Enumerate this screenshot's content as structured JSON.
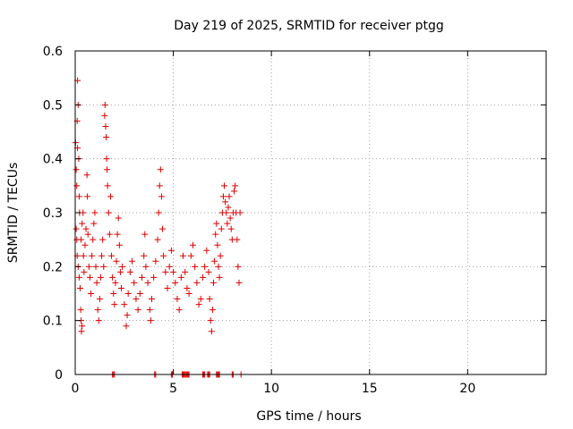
{
  "chart_data": {
    "type": "scatter",
    "title": "Day 219 of 2025, SRMTID for receiver ptgg",
    "xlabel": "GPS time / hours",
    "ylabel": "SRMTID / TECUs",
    "xlim": [
      0,
      24
    ],
    "ylim": [
      0,
      0.6
    ],
    "xticks": [
      0,
      5,
      10,
      15,
      20
    ],
    "yticks": [
      0,
      0.1,
      0.2,
      0.3,
      0.4,
      0.5,
      0.6
    ],
    "xtick_labels": [
      "0",
      "5",
      "10",
      "15",
      "20"
    ],
    "ytick_labels": [
      "0",
      "0.1",
      "0.2",
      "0.3",
      "0.4",
      "0.5",
      "0.6"
    ],
    "grid": true,
    "marker": "+",
    "series": [
      {
        "name": "SRMTID",
        "color": "#dd0000",
        "points": [
          [
            0.02,
            0.43
          ],
          [
            0.05,
            0.38
          ],
          [
            0.08,
            0.35
          ],
          [
            0.1,
            0.47
          ],
          [
            0.12,
            0.545
          ],
          [
            0.15,
            0.5
          ],
          [
            0.12,
            0.42
          ],
          [
            0.18,
            0.4
          ],
          [
            0.2,
            0.33
          ],
          [
            0.22,
            0.3
          ],
          [
            0.05,
            0.27
          ],
          [
            0.08,
            0.25
          ],
          [
            0.1,
            0.22
          ],
          [
            0.15,
            0.2
          ],
          [
            0.2,
            0.18
          ],
          [
            0.25,
            0.16
          ],
          [
            0.28,
            0.12
          ],
          [
            0.3,
            0.1
          ],
          [
            0.32,
            0.08
          ],
          [
            0.35,
            0.09
          ],
          [
            0.3,
            0.25
          ],
          [
            0.35,
            0.28
          ],
          [
            0.4,
            0.3
          ],
          [
            0.42,
            0.22
          ],
          [
            0.45,
            0.19
          ],
          [
            0.5,
            0.24
          ],
          [
            0.55,
            0.27
          ],
          [
            0.6,
            0.37
          ],
          [
            0.62,
            0.33
          ],
          [
            0.65,
            0.26
          ],
          [
            0.7,
            0.2
          ],
          [
            0.75,
            0.18
          ],
          [
            0.8,
            0.15
          ],
          [
            0.85,
            0.22
          ],
          [
            0.9,
            0.25
          ],
          [
            0.95,
            0.28
          ],
          [
            1.0,
            0.3
          ],
          [
            1.05,
            0.2
          ],
          [
            1.1,
            0.17
          ],
          [
            1.15,
            0.12
          ],
          [
            1.2,
            0.1
          ],
          [
            1.25,
            0.14
          ],
          [
            1.3,
            0.18
          ],
          [
            1.35,
            0.22
          ],
          [
            1.4,
            0.25
          ],
          [
            1.45,
            0.2
          ],
          [
            1.5,
            0.48
          ],
          [
            1.52,
            0.5
          ],
          [
            1.55,
            0.46
          ],
          [
            1.58,
            0.44
          ],
          [
            1.6,
            0.4
          ],
          [
            1.62,
            0.38
          ],
          [
            1.65,
            0.35
          ],
          [
            1.7,
            0.3
          ],
          [
            1.75,
            0.26
          ],
          [
            1.8,
            0.33
          ],
          [
            1.85,
            0.22
          ],
          [
            1.9,
            0.18
          ],
          [
            1.95,
            0.15
          ],
          [
            2.0,
            0.13
          ],
          [
            2.05,
            0.17
          ],
          [
            2.1,
            0.21
          ],
          [
            2.15,
            0.26
          ],
          [
            2.2,
            0.29
          ],
          [
            2.25,
            0.24
          ],
          [
            2.3,
            0.19
          ],
          [
            2.35,
            0.16
          ],
          [
            2.4,
            0.2
          ],
          [
            2.5,
            0.13
          ],
          [
            2.6,
            0.09
          ],
          [
            2.65,
            0.11
          ],
          [
            2.7,
            0.15
          ],
          [
            2.8,
            0.19
          ],
          [
            2.9,
            0.21
          ],
          [
            3.0,
            0.17
          ],
          [
            3.1,
            0.14
          ],
          [
            3.2,
            0.12
          ],
          [
            3.3,
            0.15
          ],
          [
            3.4,
            0.18
          ],
          [
            3.5,
            0.22
          ],
          [
            3.55,
            0.26
          ],
          [
            3.6,
            0.2
          ],
          [
            3.7,
            0.17
          ],
          [
            3.8,
            0.12
          ],
          [
            3.85,
            0.1
          ],
          [
            3.9,
            0.14
          ],
          [
            4.0,
            0.18
          ],
          [
            4.1,
            0.21
          ],
          [
            4.2,
            0.25
          ],
          [
            4.25,
            0.3
          ],
          [
            4.3,
            0.35
          ],
          [
            4.35,
            0.38
          ],
          [
            4.4,
            0.33
          ],
          [
            4.45,
            0.27
          ],
          [
            4.5,
            0.22
          ],
          [
            4.6,
            0.19
          ],
          [
            4.7,
            0.16
          ],
          [
            4.8,
            0.2
          ],
          [
            4.9,
            0.23
          ],
          [
            5.0,
            0.19
          ],
          [
            5.1,
            0.17
          ],
          [
            5.2,
            0.14
          ],
          [
            5.3,
            0.12
          ],
          [
            5.4,
            0.18
          ],
          [
            5.5,
            0.22
          ],
          [
            5.6,
            0.19
          ],
          [
            5.7,
            0.16
          ],
          [
            5.8,
            0.15
          ],
          [
            5.9,
            0.22
          ],
          [
            6.0,
            0.24
          ],
          [
            6.1,
            0.2
          ],
          [
            6.2,
            0.17
          ],
          [
            6.3,
            0.13
          ],
          [
            6.4,
            0.14
          ],
          [
            6.5,
            0.18
          ],
          [
            6.6,
            0.2
          ],
          [
            6.7,
            0.23
          ],
          [
            6.8,
            0.19
          ],
          [
            6.85,
            0.14
          ],
          [
            6.9,
            0.1
          ],
          [
            6.95,
            0.08
          ],
          [
            7.0,
            0.12
          ],
          [
            7.05,
            0.17
          ],
          [
            7.1,
            0.21
          ],
          [
            7.15,
            0.26
          ],
          [
            7.2,
            0.28
          ],
          [
            7.25,
            0.24
          ],
          [
            7.3,
            0.2
          ],
          [
            7.35,
            0.18
          ],
          [
            7.4,
            0.22
          ],
          [
            7.45,
            0.27
          ],
          [
            7.5,
            0.3
          ],
          [
            7.55,
            0.33
          ],
          [
            7.6,
            0.35
          ],
          [
            7.65,
            0.32
          ],
          [
            7.7,
            0.3
          ],
          [
            7.75,
            0.28
          ],
          [
            7.8,
            0.31
          ],
          [
            7.85,
            0.33
          ],
          [
            7.9,
            0.29
          ],
          [
            7.95,
            0.27
          ],
          [
            8.0,
            0.25
          ],
          [
            8.05,
            0.3
          ],
          [
            8.1,
            0.34
          ],
          [
            8.15,
            0.35
          ],
          [
            8.2,
            0.3
          ],
          [
            8.25,
            0.25
          ],
          [
            8.3,
            0.2
          ],
          [
            8.35,
            0.17
          ],
          [
            8.4,
            0.3
          ]
        ]
      }
    ],
    "zero_points_x": [
      1.9,
      1.95,
      2.0,
      4.05,
      4.1,
      4.9,
      4.95,
      5.45,
      5.5,
      5.55,
      5.6,
      5.65,
      5.7,
      5.75,
      5.8,
      6.5,
      6.55,
      6.6,
      6.75,
      6.8,
      6.85,
      7.2,
      7.25,
      7.3,
      7.35,
      8.0,
      8.05,
      8.45
    ]
  }
}
